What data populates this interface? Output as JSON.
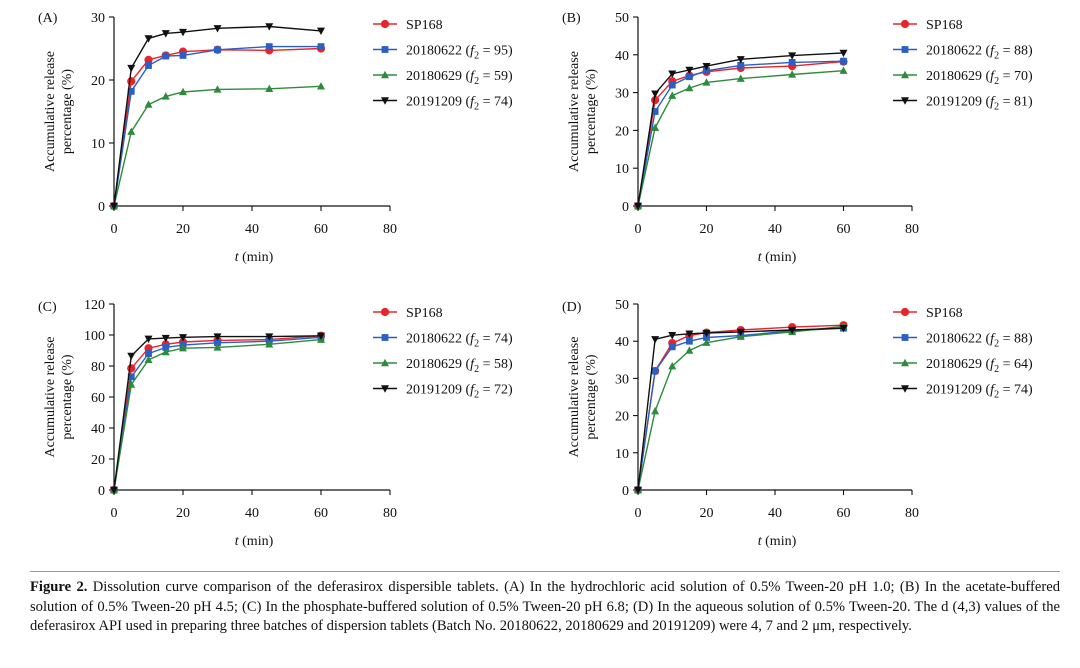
{
  "chart_data": [
    {
      "type": "line",
      "panel_label": "(A)",
      "xlabel": "t (min)",
      "ylabel": [
        "Accumulative release",
        "percentage (%)"
      ],
      "xlim": [
        0,
        80
      ],
      "ylim": [
        0,
        30
      ],
      "xticks": [
        "0",
        "20",
        "40",
        "60",
        "80"
      ],
      "yticks": [
        "0",
        "10",
        "20",
        "30"
      ],
      "x": [
        0,
        5,
        10,
        15,
        20,
        30,
        45,
        60
      ],
      "series": [
        {
          "name": "SP168",
          "values": [
            0,
            19.8,
            23.2,
            23.9,
            24.5,
            24.8,
            24.7,
            25.0
          ]
        },
        {
          "name": "20180622",
          "f2": "95",
          "values": [
            0,
            18.2,
            22.3,
            23.8,
            23.9,
            24.8,
            25.3,
            25.3
          ]
        },
        {
          "name": "20180629",
          "f2": "59",
          "values": [
            0,
            11.8,
            16.1,
            17.4,
            18.1,
            18.5,
            18.6,
            19.0
          ]
        },
        {
          "name": "20191209",
          "f2": "74",
          "values": [
            0,
            21.9,
            26.6,
            27.4,
            27.6,
            28.2,
            28.5,
            27.8
          ]
        }
      ]
    },
    {
      "type": "line",
      "panel_label": "(B)",
      "xlabel": "t (min)",
      "ylabel": [
        "Accumulative release",
        "percentage (%)"
      ],
      "xlim": [
        0,
        80
      ],
      "ylim": [
        0,
        50
      ],
      "xticks": [
        "0",
        "20",
        "40",
        "60",
        "80"
      ],
      "yticks": [
        "0",
        "10",
        "20",
        "30",
        "40",
        "50"
      ],
      "x": [
        0,
        5,
        10,
        15,
        20,
        30,
        45,
        60
      ],
      "series": [
        {
          "name": "SP168",
          "values": [
            0,
            28.0,
            33.0,
            34.5,
            35.5,
            36.5,
            37.0,
            38.2
          ]
        },
        {
          "name": "20180622",
          "f2": "88",
          "values": [
            0,
            25.0,
            32.0,
            34.2,
            35.8,
            37.2,
            38.0,
            38.3
          ]
        },
        {
          "name": "20180629",
          "f2": "70",
          "values": [
            0,
            20.7,
            29.2,
            31.2,
            32.7,
            33.7,
            34.8,
            35.8
          ]
        },
        {
          "name": "20191209",
          "f2": "81",
          "values": [
            0,
            29.7,
            35.0,
            36.0,
            37.0,
            38.8,
            39.8,
            40.5
          ]
        }
      ]
    },
    {
      "type": "line",
      "panel_label": "(C)",
      "xlabel": "t (min)",
      "ylabel": [
        "Accumulative release",
        "percentage (%)"
      ],
      "xlim": [
        0,
        80
      ],
      "ylim": [
        0,
        120
      ],
      "xticks": [
        "0",
        "20",
        "40",
        "60",
        "80"
      ],
      "yticks": [
        "0",
        "20",
        "40",
        "60",
        "80",
        "100",
        "120"
      ],
      "x": [
        0,
        5,
        10,
        15,
        20,
        30,
        45,
        60
      ],
      "series": [
        {
          "name": "SP168",
          "values": [
            0,
            78.5,
            91.5,
            94.0,
            95.5,
            96.5,
            97.0,
            99.5
          ]
        },
        {
          "name": "20180622",
          "f2": "74",
          "values": [
            0,
            73.0,
            88.0,
            92.0,
            93.5,
            95.0,
            96.0,
            98.5
          ]
        },
        {
          "name": "20180629",
          "f2": "58",
          "values": [
            0,
            68.0,
            84.0,
            89.0,
            91.5,
            92.0,
            94.0,
            97.0
          ]
        },
        {
          "name": "20191209",
          "f2": "72",
          "values": [
            0,
            86.5,
            97.5,
            98.0,
            98.5,
            99.0,
            99.0,
            99.5
          ]
        }
      ]
    },
    {
      "type": "line",
      "panel_label": "(D)",
      "xlabel": "t (min)",
      "ylabel": [
        "Accumulative release",
        "percentage (%)"
      ],
      "xlim": [
        0,
        80
      ],
      "ylim": [
        0,
        50
      ],
      "xticks": [
        "0",
        "20",
        "40",
        "60",
        "80"
      ],
      "yticks": [
        "0",
        "10",
        "20",
        "30",
        "40",
        "50"
      ],
      "x": [
        0,
        5,
        10,
        15,
        20,
        30,
        45,
        60
      ],
      "series": [
        {
          "name": "SP168",
          "values": [
            0,
            32.0,
            39.5,
            41.5,
            42.3,
            43.0,
            43.8,
            44.3
          ]
        },
        {
          "name": "20180622",
          "f2": "88",
          "values": [
            0,
            32.0,
            38.5,
            40.0,
            41.0,
            41.5,
            42.8,
            43.5
          ]
        },
        {
          "name": "20180629",
          "f2": "64",
          "values": [
            0,
            21.2,
            33.3,
            37.5,
            39.6,
            41.2,
            42.5,
            44.0
          ]
        },
        {
          "name": "20191209",
          "f2": "74",
          "values": [
            0,
            40.5,
            41.6,
            42.0,
            42.2,
            42.5,
            43.0,
            43.5
          ]
        }
      ]
    }
  ],
  "series_styles": [
    {
      "color": "#e8242b",
      "marker": "circle"
    },
    {
      "color": "#2b5fc4",
      "marker": "square"
    },
    {
      "color": "#2e8b3e",
      "marker": "triangle-up"
    },
    {
      "color": "#111111",
      "marker": "triangle-down"
    }
  ],
  "caption": {
    "label": "Figure 2.",
    "text": " Dissolution curve comparison of the deferasirox dispersible tablets. (A) In the hydrochloric acid solution of 0.5% Tween-20 pH 1.0; (B) In the acetate-buffered solution of 0.5% Tween-20 pH 4.5; (C) In the phosphate-buffered solution of 0.5% Tween-20 pH 6.8; (D) In the aqueous solution of 0.5% Tween-20. The d (4,3) values of the deferasirox API used in preparing three batches of dispersion tablets (Batch No. 20180622, 20180629 and 20191209) were 4, 7 and 2 μm, respectively."
  }
}
